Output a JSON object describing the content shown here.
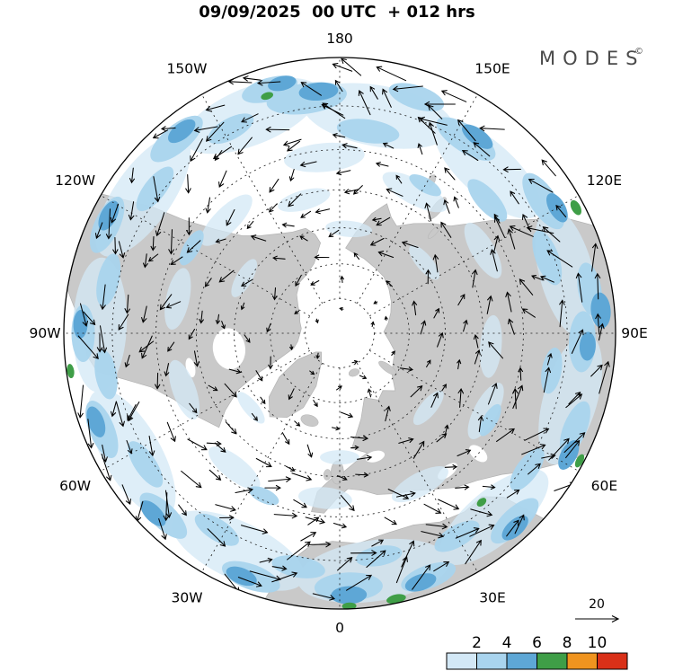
{
  "header": {
    "title": "09/09/2025  00 UTC  + 012 hrs",
    "brand": "MODES",
    "brand_mark": "©"
  },
  "chart_data": {
    "type": "heatmap",
    "subtype": "north polar stereographic map with wind vectors and shaded magnitude",
    "title": "09/09/2025 00 UTC + 012 hrs",
    "projection": {
      "name": "north polar stereographic",
      "center": "North Pole",
      "boundary_latitude_deg": 20
    },
    "meridians": [
      {
        "label": "180",
        "angle_deg": 0
      },
      {
        "label": "150E",
        "angle_deg": 30
      },
      {
        "label": "120E",
        "angle_deg": 60
      },
      {
        "label": "90E",
        "angle_deg": 90
      },
      {
        "label": "60E",
        "angle_deg": 120
      },
      {
        "label": "30E",
        "angle_deg": 150
      },
      {
        "label": "0",
        "angle_deg": 180
      },
      {
        "label": "30W",
        "angle_deg": 210
      },
      {
        "label": "60W",
        "angle_deg": 240
      },
      {
        "label": "90W",
        "angle_deg": 270
      },
      {
        "label": "120W",
        "angle_deg": 300
      },
      {
        "label": "150W",
        "angle_deg": 330
      }
    ],
    "latitude_circles_deg": [
      80,
      70,
      60,
      50,
      40,
      30
    ],
    "graticule_style": "dashed",
    "land_color": "#c9c9c9",
    "sea_color": "#ffffff",
    "vector_color": "#000000",
    "reference_vector": {
      "label": "20"
    },
    "colorbar": {
      "orientation": "horizontal",
      "position": "bottom-right",
      "tick_labels": [
        "2",
        "4",
        "6",
        "8",
        "10"
      ],
      "segment_colors": [
        "#d3e8f6",
        "#a9d4ee",
        "#5ea7d6",
        "#3f9e47",
        "#f0941f",
        "#d93018"
      ]
    },
    "land_polygons": {
      "north_america": [
        [
          348,
          0.335
        ],
        [
          340,
          0.27
        ],
        [
          331,
          0.245
        ],
        [
          322,
          0.235
        ],
        [
          312,
          0.21
        ],
        [
          303,
          0.18
        ],
        [
          295,
          0.16
        ],
        [
          286,
          0.15
        ],
        [
          277,
          0.14
        ],
        [
          268,
          0.145
        ],
        [
          259,
          0.155
        ],
        [
          252,
          0.175
        ],
        [
          247,
          0.24
        ],
        [
          244,
          0.33
        ],
        [
          241,
          0.42
        ],
        [
          236,
          0.5
        ],
        [
          232,
          0.555
        ],
        [
          240,
          0.6
        ],
        [
          248,
          0.645
        ],
        [
          254,
          0.71
        ],
        [
          258,
          0.8
        ],
        [
          261,
          0.89
        ],
        [
          265,
          0.92
        ],
        [
          271,
          0.93
        ],
        [
          276,
          0.97
        ],
        [
          281,
          1.02
        ],
        [
          300,
          1.02
        ],
        [
          304,
          0.82
        ],
        [
          306,
          0.7
        ],
        [
          310,
          0.585
        ],
        [
          315,
          0.5
        ],
        [
          321,
          0.455
        ],
        [
          328,
          0.425
        ],
        [
          335,
          0.405
        ],
        [
          342,
          0.4
        ],
        [
          346,
          0.37
        ]
      ],
      "greenland": [
        [
          224,
          0.095
        ],
        [
          212,
          0.125
        ],
        [
          204,
          0.21
        ],
        [
          206,
          0.3
        ],
        [
          212,
          0.36
        ],
        [
          220,
          0.395
        ],
        [
          228,
          0.345
        ],
        [
          234,
          0.27
        ],
        [
          238,
          0.18
        ],
        [
          232,
          0.11
        ]
      ],
      "eurasia": [
        [
          174,
          0.42
        ],
        [
          166,
          0.32
        ],
        [
          159,
          0.25
        ],
        [
          150,
          0.28
        ],
        [
          143,
          0.26
        ],
        [
          136,
          0.29
        ],
        [
          128,
          0.24
        ],
        [
          118,
          0.22
        ],
        [
          108,
          0.21
        ],
        [
          98,
          0.18
        ],
        [
          88,
          0.16
        ],
        [
          78,
          0.18
        ],
        [
          68,
          0.2
        ],
        [
          58,
          0.22
        ],
        [
          48,
          0.24
        ],
        [
          38,
          0.26
        ],
        [
          28,
          0.27
        ],
        [
          18,
          0.285
        ],
        [
          10,
          0.295
        ],
        [
          4,
          0.31
        ],
        [
          9,
          0.37
        ],
        [
          15,
          0.45
        ],
        [
          20,
          0.5
        ],
        [
          24,
          0.46
        ],
        [
          28,
          0.44
        ],
        [
          34,
          0.48
        ],
        [
          40,
          0.52
        ],
        [
          46,
          0.56
        ],
        [
          50,
          0.62
        ],
        [
          54,
          0.7
        ],
        [
          59,
          0.8
        ],
        [
          63,
          0.92
        ],
        [
          67,
          1.0
        ],
        [
          80,
          1.04
        ],
        [
          92,
          1.05
        ],
        [
          104,
          1.04
        ],
        [
          116,
          1.0
        ],
        [
          121,
          0.92
        ],
        [
          126,
          0.85
        ],
        [
          131,
          0.78
        ],
        [
          137,
          0.73
        ],
        [
          143,
          0.7
        ],
        [
          149,
          0.66
        ],
        [
          155,
          0.63
        ],
        [
          161,
          0.615
        ],
        [
          167,
          0.6
        ],
        [
          172,
          0.575
        ],
        [
          177,
          0.565
        ],
        [
          181,
          0.6
        ],
        [
          185,
          0.655
        ],
        [
          189,
          0.655
        ],
        [
          188,
          0.58
        ],
        [
          183,
          0.525
        ],
        [
          178,
          0.5
        ],
        [
          172,
          0.465
        ],
        [
          167,
          0.445
        ],
        [
          171,
          0.43
        ]
      ],
      "africa": [
        [
          196,
          1.02
        ],
        [
          193,
          0.86
        ],
        [
          188,
          0.78
        ],
        [
          182,
          0.755
        ],
        [
          175,
          0.765
        ],
        [
          167,
          0.745
        ],
        [
          159,
          0.745
        ],
        [
          152,
          0.775
        ],
        [
          145,
          0.79
        ],
        [
          139,
          0.785
        ],
        [
          135,
          0.84
        ],
        [
          132,
          1.02
        ],
        [
          145,
          1.06
        ],
        [
          160,
          1.07
        ],
        [
          178,
          1.06
        ],
        [
          190,
          1.04
        ]
      ]
    },
    "island_ellipses": [
      [
        181,
        0.505,
        7,
        13
      ],
      [
        185,
        0.515,
        4,
        6
      ],
      [
        199,
        0.335,
        10,
        6
      ],
      [
        160,
        0.152,
        6,
        4
      ],
      [
        126,
        0.215,
        4,
        12
      ],
      [
        38,
        0.575,
        5,
        15
      ],
      [
        31,
        0.64,
        4,
        9
      ],
      [
        43,
        0.5,
        3,
        9
      ]
    ],
    "lake_ellipses": [
      [
        262,
        0.405,
        23,
        18
      ],
      [
        142,
        0.635,
        13,
        6
      ],
      [
        131,
        0.665,
        7,
        12
      ],
      [
        164,
        0.465,
        11,
        6
      ],
      [
        257,
        0.555,
        11,
        5
      ]
    ],
    "shaded_regions": {
      "format": "[angle_deg_cw_from_top, radius_fraction, rx_px, ry_px, colorbar_level_index]",
      "items": [
        [
          10,
          0.8,
          85,
          34,
          0
        ],
        [
          42,
          0.8,
          75,
          30,
          0
        ],
        [
          75,
          0.85,
          75,
          30,
          0
        ],
        [
          106,
          0.87,
          75,
          30,
          0
        ],
        [
          140,
          0.87,
          75,
          30,
          0
        ],
        [
          172,
          0.87,
          85,
          34,
          0
        ],
        [
          205,
          0.87,
          80,
          32,
          0
        ],
        [
          240,
          0.87,
          80,
          32,
          0
        ],
        [
          272,
          0.87,
          75,
          30,
          0
        ],
        [
          305,
          0.87,
          80,
          32,
          0
        ],
        [
          338,
          0.85,
          80,
          32,
          0
        ],
        [
          355,
          0.64,
          45,
          16,
          0
        ],
        [
          28,
          0.58,
          40,
          14,
          0
        ],
        [
          60,
          0.6,
          35,
          13,
          0
        ],
        [
          95,
          0.55,
          35,
          12,
          0
        ],
        [
          118,
          0.6,
          35,
          13,
          0
        ],
        [
          152,
          0.62,
          35,
          13,
          0
        ],
        [
          185,
          0.6,
          30,
          12,
          0
        ],
        [
          218,
          0.62,
          35,
          13,
          0
        ],
        [
          250,
          0.6,
          35,
          13,
          0
        ],
        [
          282,
          0.6,
          35,
          13,
          0
        ],
        [
          315,
          0.58,
          38,
          14,
          0
        ],
        [
          345,
          0.5,
          30,
          11,
          0
        ],
        [
          5,
          0.38,
          26,
          9,
          0
        ],
        [
          50,
          0.4,
          24,
          9,
          0
        ],
        [
          130,
          0.42,
          24,
          9,
          0
        ],
        [
          230,
          0.42,
          22,
          8,
          0
        ],
        [
          300,
          0.4,
          24,
          9,
          0
        ],
        [
          180,
          0.45,
          22,
          8,
          0
        ],
        [
          352,
          0.86,
          45,
          17,
          1
        ],
        [
          8,
          0.74,
          35,
          13,
          1
        ],
        [
          18,
          0.9,
          32,
          13,
          1
        ],
        [
          33,
          0.84,
          38,
          15,
          1
        ],
        [
          48,
          0.72,
          30,
          12,
          1
        ],
        [
          57,
          0.88,
          36,
          15,
          1
        ],
        [
          70,
          0.8,
          32,
          13,
          1
        ],
        [
          80,
          0.92,
          30,
          13,
          1
        ],
        [
          92,
          0.88,
          34,
          15,
          1
        ],
        [
          100,
          0.78,
          26,
          11,
          1
        ],
        [
          112,
          0.92,
          32,
          13,
          1
        ],
        [
          126,
          0.84,
          28,
          12,
          1
        ],
        [
          137,
          0.93,
          34,
          14,
          1
        ],
        [
          150,
          0.85,
          28,
          12,
          1
        ],
        [
          160,
          0.94,
          32,
          13,
          1
        ],
        [
          170,
          0.82,
          26,
          11,
          1
        ],
        [
          178,
          0.92,
          38,
          16,
          1
        ],
        [
          190,
          0.86,
          30,
          12,
          1
        ],
        [
          200,
          0.94,
          34,
          14,
          1
        ],
        [
          212,
          0.84,
          28,
          12,
          1
        ],
        [
          224,
          0.92,
          34,
          14,
          1
        ],
        [
          236,
          0.85,
          30,
          12,
          1
        ],
        [
          248,
          0.93,
          34,
          14,
          1
        ],
        [
          260,
          0.86,
          28,
          12,
          1
        ],
        [
          270,
          0.93,
          32,
          13,
          1
        ],
        [
          283,
          0.86,
          30,
          12,
          1
        ],
        [
          295,
          0.93,
          34,
          14,
          1
        ],
        [
          308,
          0.85,
          30,
          12,
          1
        ],
        [
          320,
          0.92,
          36,
          15,
          1
        ],
        [
          332,
          0.84,
          28,
          12,
          1
        ],
        [
          344,
          0.92,
          32,
          13,
          1
        ],
        [
          300,
          0.62,
          22,
          9,
          1
        ],
        [
          120,
          0.63,
          20,
          8,
          1
        ],
        [
          205,
          0.65,
          18,
          8,
          1
        ],
        [
          30,
          0.62,
          20,
          8,
          1
        ],
        [
          355,
          0.88,
          22,
          10,
          2
        ],
        [
          35,
          0.87,
          20,
          9,
          2
        ],
        [
          60,
          0.91,
          18,
          9,
          2
        ],
        [
          85,
          0.95,
          20,
          11,
          2
        ],
        [
          93,
          0.9,
          16,
          9,
          2
        ],
        [
          118,
          0.94,
          18,
          9,
          2
        ],
        [
          138,
          0.95,
          18,
          9,
          2
        ],
        [
          162,
          0.95,
          18,
          9,
          2
        ],
        [
          178,
          0.95,
          20,
          10,
          2
        ],
        [
          202,
          0.95,
          18,
          9,
          2
        ],
        [
          226,
          0.94,
          18,
          9,
          2
        ],
        [
          250,
          0.94,
          18,
          9,
          2
        ],
        [
          272,
          0.94,
          16,
          8,
          2
        ],
        [
          297,
          0.94,
          18,
          9,
          2
        ],
        [
          322,
          0.93,
          18,
          9,
          2
        ],
        [
          347,
          0.93,
          16,
          8,
          2
        ],
        [
          62,
          0.97,
          9,
          5,
          3
        ],
        [
          118,
          0.985,
          8,
          4,
          3
        ],
        [
          168,
          0.985,
          11,
          5,
          3
        ],
        [
          178,
          0.99,
          8,
          4,
          3
        ],
        [
          262,
          0.985,
          8,
          4,
          3
        ],
        [
          343,
          0.9,
          7,
          4,
          3
        ],
        [
          140,
          0.8,
          6,
          4,
          3
        ]
      ]
    }
  }
}
